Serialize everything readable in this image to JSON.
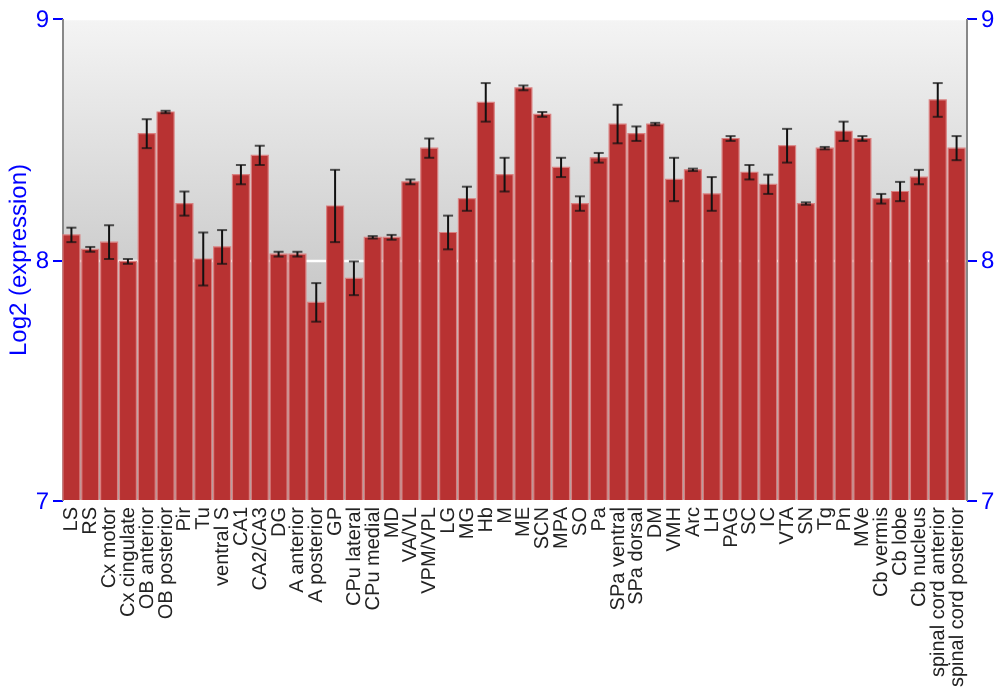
{
  "chart_data": {
    "type": "bar",
    "ylabel": "Log2 (expression)",
    "categories": [
      "LS",
      "RS",
      "Cx motor",
      "Cx cingulate",
      "OB anterior",
      "OB posterior",
      "Pir",
      "Tu",
      "ventral S",
      "CA1",
      "CA2/CA3",
      "DG",
      "A anterior",
      "A posterior",
      "GP",
      "CPu lateral",
      "CPu medial",
      "MD",
      "VA/VL",
      "VPM/VPL",
      "LG",
      "MG",
      "Hb",
      "M",
      "ME",
      "SCN",
      "MPA",
      "SO",
      "Pa",
      "SPa ventral",
      "SPa dorsal",
      "DM",
      "VMH",
      "Arc",
      "LH",
      "PAG",
      "SC",
      "IC",
      "VTA",
      "SN",
      "Tg",
      "Pn",
      "MVe",
      "Cb vermis",
      "Cb lobe",
      "Cb nucleus",
      "spinal cord anterior",
      "spinal cord posterior"
    ],
    "values": [
      8.1,
      8.04,
      8.07,
      7.99,
      8.52,
      8.61,
      8.23,
      8.0,
      8.05,
      8.35,
      8.43,
      8.02,
      8.02,
      7.82,
      8.22,
      7.92,
      8.09,
      8.09,
      8.32,
      8.46,
      8.11,
      8.25,
      8.65,
      8.35,
      8.71,
      8.6,
      8.38,
      8.23,
      8.42,
      8.56,
      8.52,
      8.56,
      8.33,
      8.37,
      8.27,
      8.5,
      8.36,
      8.31,
      8.47,
      8.23,
      8.46,
      8.53,
      8.5,
      8.25,
      8.28,
      8.34,
      8.66,
      8.46
    ],
    "errors": [
      0.03,
      0.01,
      0.07,
      0.01,
      0.06,
      0.005,
      0.05,
      0.11,
      0.07,
      0.04,
      0.04,
      0.01,
      0.01,
      0.08,
      0.15,
      0.07,
      0.005,
      0.01,
      0.01,
      0.04,
      0.07,
      0.05,
      0.08,
      0.07,
      0.01,
      0.01,
      0.04,
      0.03,
      0.02,
      0.08,
      0.03,
      0.005,
      0.09,
      0.005,
      0.07,
      0.01,
      0.03,
      0.04,
      0.07,
      0.005,
      0.005,
      0.04,
      0.01,
      0.02,
      0.04,
      0.03,
      0.07,
      0.05
    ],
    "color": "#b83232",
    "ylim": [
      7,
      9
    ],
    "yticks": [
      7,
      8,
      9
    ],
    "y2lim": [
      7,
      9
    ],
    "y2ticks": [
      7,
      8,
      9
    ],
    "grid": "y"
  }
}
